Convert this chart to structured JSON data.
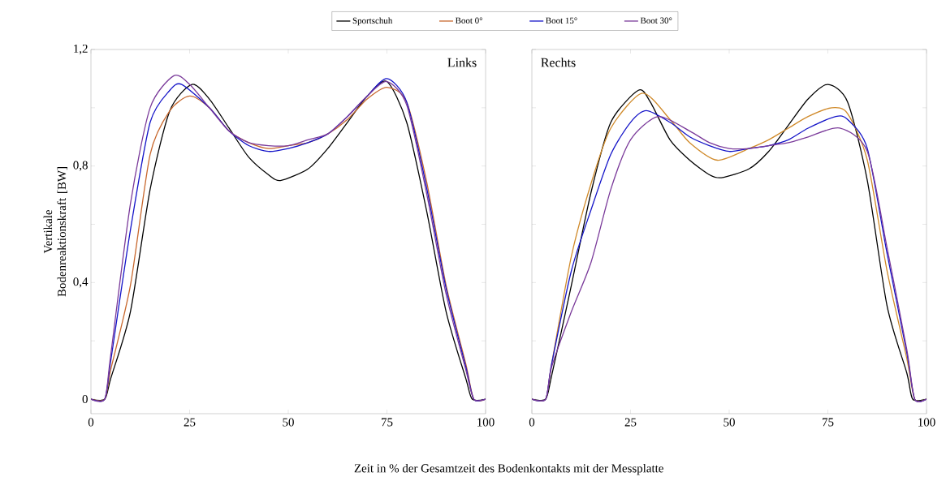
{
  "chart_data": [
    {
      "type": "line",
      "ylabel": "Vertikale Bodenreaktionskraft [BW]",
      "xlabel": "Zeit in % der Gesamtzeit des Bodenkontakts mit der Messplatte",
      "annotations": [
        "Links"
      ],
      "legend": "top",
      "marker": "none",
      "line_style": "solid",
      "xlim": [
        0,
        100
      ],
      "xticks": [
        0,
        25,
        50,
        75,
        100
      ],
      "ylim": [
        -0.05,
        1.2
      ],
      "yticks": [
        0,
        {
          "value": 0.2,
          "label": null
        },
        {
          "value": 0.4,
          "label": "0,4"
        },
        {
          "value": 0.6,
          "label": null
        },
        {
          "value": 0.8,
          "label": "0,8"
        },
        {
          "value": 1.0,
          "label": null
        },
        {
          "value": 1.2,
          "label": "1,2"
        }
      ],
      "series": [
        {
          "name": "Sportschuh",
          "color": "#000000",
          "x": [
            0,
            3.5,
            5,
            10,
            15,
            20,
            25.6,
            30,
            35,
            40,
            45,
            48,
            55,
            60,
            65,
            70,
            75,
            80,
            85,
            90,
            95,
            96.6,
            100
          ],
          "values": [
            0,
            0,
            0.07,
            0.3,
            0.72,
            0.99,
            1.08,
            1.03,
            0.93,
            0.83,
            0.77,
            0.75,
            0.79,
            0.86,
            0.95,
            1.04,
            1.09,
            0.95,
            0.65,
            0.3,
            0.07,
            0,
            0
          ]
        },
        {
          "name": "Boot 0°",
          "color": "#c8682e",
          "x": [
            0,
            3.5,
            5,
            10,
            15,
            20,
            25,
            30,
            35,
            40,
            45,
            50,
            55,
            60,
            65,
            70,
            75,
            80,
            85,
            90,
            95,
            97,
            100
          ],
          "values": [
            0,
            0,
            0.1,
            0.39,
            0.84,
            0.99,
            1.04,
            1.0,
            0.92,
            0.88,
            0.86,
            0.87,
            0.88,
            0.91,
            0.96,
            1.03,
            1.07,
            1.02,
            0.75,
            0.39,
            0.12,
            0,
            0
          ]
        },
        {
          "name": "Boot 15°",
          "color": "#1414c8",
          "x": [
            0,
            3.5,
            5,
            10,
            15,
            20,
            23,
            30,
            35,
            40,
            45,
            50,
            55,
            60,
            65,
            70,
            75,
            80,
            85,
            90,
            95,
            97,
            100
          ],
          "values": [
            0,
            0,
            0.13,
            0.58,
            0.95,
            1.06,
            1.08,
            1.0,
            0.92,
            0.87,
            0.85,
            0.86,
            0.88,
            0.91,
            0.97,
            1.04,
            1.1,
            1.02,
            0.73,
            0.38,
            0.11,
            0,
            0
          ]
        },
        {
          "name": "Boot 30°",
          "color": "#7a3a9a",
          "x": [
            0,
            3.5,
            5,
            10,
            15,
            21,
            25,
            30,
            35,
            40,
            45,
            50,
            55,
            60,
            65,
            70,
            75,
            80,
            85,
            90,
            95,
            97,
            100
          ],
          "values": [
            0,
            0,
            0.15,
            0.67,
            1.0,
            1.11,
            1.08,
            1.0,
            0.92,
            0.88,
            0.87,
            0.87,
            0.89,
            0.91,
            0.97,
            1.04,
            1.09,
            1.01,
            0.71,
            0.36,
            0.1,
            0,
            0
          ]
        }
      ]
    },
    {
      "type": "line",
      "annotations": [
        "Rechts"
      ],
      "marker": "none",
      "line_style": "solid",
      "tick_labels": "x",
      "xlim": [
        0,
        100
      ],
      "xticks": [
        0,
        25,
        50,
        75,
        100
      ],
      "ylim": [
        -0.05,
        1.2
      ],
      "yticks": [
        0,
        0.2,
        0.4,
        0.6,
        0.8,
        1.0,
        1.2
      ],
      "series": [
        {
          "color": "#000000",
          "x": [
            0,
            3.5,
            5,
            10,
            15,
            20,
            27,
            30,
            35,
            40,
            45,
            48,
            55,
            60,
            65,
            70,
            75,
            80,
            85,
            90,
            95,
            96.5,
            100
          ],
          "values": [
            0,
            0,
            0.08,
            0.39,
            0.71,
            0.95,
            1.06,
            1.02,
            0.89,
            0.82,
            0.77,
            0.76,
            0.79,
            0.85,
            0.94,
            1.03,
            1.08,
            1.02,
            0.75,
            0.32,
            0.09,
            0,
            0
          ]
        },
        {
          "color": "#d08a2a",
          "x": [
            0,
            3.5,
            5,
            10,
            15,
            20,
            28,
            35,
            40,
            47,
            55,
            60,
            65,
            70,
            76,
            80,
            85,
            90,
            95,
            97,
            100
          ],
          "values": [
            0,
            0,
            0.12,
            0.49,
            0.74,
            0.93,
            1.05,
            0.96,
            0.88,
            0.82,
            0.86,
            0.89,
            0.93,
            0.97,
            1.0,
            0.98,
            0.82,
            0.44,
            0.14,
            0,
            0
          ]
        },
        {
          "color": "#1414c8",
          "x": [
            0,
            3.5,
            5,
            10,
            15,
            20,
            25,
            29,
            35,
            40,
            45,
            50,
            55,
            60,
            65,
            70,
            77,
            80,
            85,
            90,
            95,
            97,
            100
          ],
          "values": [
            0,
            0,
            0.12,
            0.44,
            0.65,
            0.84,
            0.95,
            0.99,
            0.95,
            0.9,
            0.87,
            0.85,
            0.86,
            0.87,
            0.89,
            0.93,
            0.97,
            0.96,
            0.86,
            0.5,
            0.16,
            0,
            0
          ]
        },
        {
          "color": "#7a3a9a",
          "x": [
            0,
            3.5,
            5,
            10,
            15,
            20,
            25,
            32,
            40,
            45,
            50,
            55,
            60,
            65,
            70,
            78,
            85,
            90,
            95,
            97,
            100
          ],
          "values": [
            0,
            0,
            0.11,
            0.3,
            0.47,
            0.72,
            0.89,
            0.97,
            0.92,
            0.88,
            0.86,
            0.86,
            0.87,
            0.88,
            0.9,
            0.93,
            0.85,
            0.52,
            0.17,
            0,
            0
          ]
        }
      ]
    }
  ]
}
